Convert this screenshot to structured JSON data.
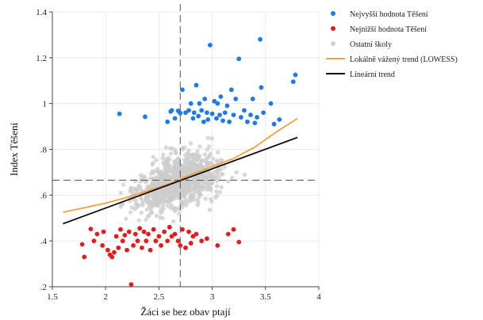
{
  "chart_data": {
    "type": "scatter",
    "xlabel": "Žáci se bez obav ptají",
    "ylabel": "Index Těšení",
    "xlim": [
      1.5,
      4.0
    ],
    "ylim": [
      0.2,
      1.4
    ],
    "x_ticks": [
      "1.5",
      "2",
      "2.5",
      "3",
      "3.5",
      "4"
    ],
    "y_ticks": [
      ".2",
      ".4",
      ".6",
      ".8",
      "1",
      "1.2",
      "1.4"
    ],
    "grid": true,
    "legend_position": "right",
    "reference_lines": {
      "x": 2.7,
      "y": 0.665
    },
    "series": [
      {
        "name": "Nejvyšší hodnota Těšení",
        "kind": "points",
        "color": "#1e7be6",
        "points": [
          [
            2.13,
            0.955
          ],
          [
            2.37,
            0.942
          ],
          [
            2.58,
            0.92
          ],
          [
            2.61,
            0.965
          ],
          [
            2.62,
            0.97
          ],
          [
            2.65,
            0.935
          ],
          [
            2.68,
            0.968
          ],
          [
            2.7,
            0.958
          ],
          [
            2.72,
            1.06
          ],
          [
            2.75,
            0.96
          ],
          [
            2.78,
            0.97
          ],
          [
            2.8,
            1.0
          ],
          [
            2.82,
            0.935
          ],
          [
            2.83,
            0.96
          ],
          [
            2.85,
            1.08
          ],
          [
            2.87,
            0.945
          ],
          [
            2.88,
            1.0
          ],
          [
            2.9,
            0.97
          ],
          [
            2.92,
            0.92
          ],
          [
            2.93,
            1.02
          ],
          [
            2.95,
            0.96
          ],
          [
            2.96,
            0.93
          ],
          [
            2.98,
            1.255
          ],
          [
            3.0,
            0.955
          ],
          [
            3.02,
            1.01
          ],
          [
            3.04,
            0.935
          ],
          [
            3.05,
            1.0
          ],
          [
            3.07,
            0.95
          ],
          [
            3.08,
            1.03
          ],
          [
            3.1,
            0.925
          ],
          [
            3.12,
            0.96
          ],
          [
            3.14,
            0.99
          ],
          [
            3.16,
            0.92
          ],
          [
            3.18,
            1.06
          ],
          [
            3.2,
            0.95
          ],
          [
            3.22,
            1.02
          ],
          [
            3.25,
            1.195
          ],
          [
            3.27,
            0.94
          ],
          [
            3.3,
            0.97
          ],
          [
            3.33,
            0.92
          ],
          [
            3.36,
            0.95
          ],
          [
            3.38,
            1.02
          ],
          [
            3.4,
            0.915
          ],
          [
            3.42,
            0.94
          ],
          [
            3.45,
            1.28
          ],
          [
            3.46,
            1.07
          ],
          [
            3.48,
            0.96
          ],
          [
            3.55,
            1.0
          ],
          [
            3.58,
            0.91
          ],
          [
            3.63,
            0.93
          ],
          [
            3.76,
            1.095
          ],
          [
            3.78,
            1.125
          ]
        ]
      },
      {
        "name": "Nejnižší hodnota Těšení",
        "kind": "points",
        "color": "#e61b1b",
        "points": [
          [
            1.78,
            0.385
          ],
          [
            1.8,
            0.33
          ],
          [
            1.86,
            0.452
          ],
          [
            1.89,
            0.4
          ],
          [
            1.92,
            0.43
          ],
          [
            1.97,
            0.38
          ],
          [
            1.98,
            0.44
          ],
          [
            2.02,
            0.36
          ],
          [
            2.04,
            0.34
          ],
          [
            2.06,
            0.33
          ],
          [
            2.08,
            0.35
          ],
          [
            2.1,
            0.42
          ],
          [
            2.12,
            0.37
          ],
          [
            2.14,
            0.45
          ],
          [
            2.16,
            0.4
          ],
          [
            2.18,
            0.425
          ],
          [
            2.2,
            0.36
          ],
          [
            2.22,
            0.44
          ],
          [
            2.24,
            0.21
          ],
          [
            2.26,
            0.38
          ],
          [
            2.28,
            0.43
          ],
          [
            2.3,
            0.4
          ],
          [
            2.32,
            0.455
          ],
          [
            2.34,
            0.37
          ],
          [
            2.36,
            0.44
          ],
          [
            2.38,
            0.4
          ],
          [
            2.4,
            0.43
          ],
          [
            2.42,
            0.36
          ],
          [
            2.45,
            0.45
          ],
          [
            2.47,
            0.4
          ],
          [
            2.5,
            0.42
          ],
          [
            2.52,
            0.38
          ],
          [
            2.55,
            0.44
          ],
          [
            2.58,
            0.4
          ],
          [
            2.6,
            0.46
          ],
          [
            2.62,
            0.42
          ],
          [
            2.65,
            0.43
          ],
          [
            2.68,
            0.4
          ],
          [
            2.7,
            0.38
          ],
          [
            2.72,
            0.45
          ],
          [
            2.75,
            0.37
          ],
          [
            2.78,
            0.44
          ],
          [
            2.8,
            0.39
          ],
          [
            2.82,
            0.42
          ],
          [
            2.85,
            0.43
          ],
          [
            2.9,
            0.4
          ],
          [
            2.95,
            0.41
          ],
          [
            3.05,
            0.38
          ],
          [
            3.15,
            0.43
          ],
          [
            3.2,
            0.45
          ],
          [
            3.25,
            0.395
          ]
        ]
      },
      {
        "name": "Ostatní školy",
        "kind": "cloud",
        "color": "#cccccc",
        "count": 900,
        "x_mean": 2.68,
        "x_sd": 0.33,
        "y_min": 0.47,
        "y_max": 0.92
      },
      {
        "name": "Lokálně vážený trend (LOWESS)",
        "kind": "line",
        "color": "#f5a03c",
        "points": [
          [
            1.6,
            0.525
          ],
          [
            1.8,
            0.545
          ],
          [
            2.0,
            0.565
          ],
          [
            2.2,
            0.59
          ],
          [
            2.4,
            0.62
          ],
          [
            2.6,
            0.65
          ],
          [
            2.8,
            0.69
          ],
          [
            3.0,
            0.725
          ],
          [
            3.2,
            0.76
          ],
          [
            3.4,
            0.81
          ],
          [
            3.6,
            0.875
          ],
          [
            3.8,
            0.935
          ]
        ]
      },
      {
        "name": "Lineární trend",
        "kind": "line",
        "color": "#111111",
        "points": [
          [
            1.6,
            0.475
          ],
          [
            3.8,
            0.852
          ]
        ]
      }
    ],
    "legend": [
      {
        "label": "Nejvyšší hodnota Těšení",
        "type": "dot",
        "color": "#1e7be6"
      },
      {
        "label": "Nejnižší hodnota Těšení",
        "type": "dot",
        "color": "#e61b1b"
      },
      {
        "label": "Ostatní školy",
        "type": "dot",
        "color": "#d0d0d0"
      },
      {
        "label": "Lokálně vážený trend (LOWESS)",
        "type": "line",
        "color": "#f5a03c"
      },
      {
        "label": "Lineární trend",
        "type": "line",
        "color": "#111111"
      }
    ]
  }
}
